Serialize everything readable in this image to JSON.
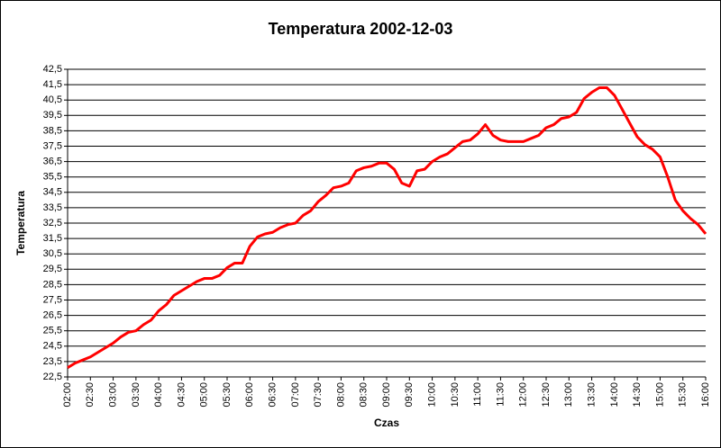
{
  "chart_data": {
    "type": "line",
    "title": "Temperatura 2002-12-03",
    "x_label": "Czas",
    "y_label": "Temperatura",
    "categories": [
      "02:00",
      null,
      null,
      "02:30",
      null,
      null,
      "03:00",
      null,
      null,
      "03:30",
      null,
      null,
      "04:00",
      null,
      null,
      "04:30",
      null,
      null,
      "05:00",
      null,
      null,
      "05:30",
      null,
      null,
      "06:00",
      null,
      null,
      "06:30",
      null,
      null,
      "07:00",
      null,
      null,
      "07:30",
      null,
      null,
      "08:00",
      null,
      null,
      "08:30",
      null,
      null,
      "09:00",
      null,
      null,
      "09:30",
      null,
      null,
      "10:00",
      null,
      null,
      "10:30",
      null,
      null,
      "11:00",
      null,
      null,
      "11:30",
      null,
      null,
      "12:00",
      null,
      null,
      "12:30",
      null,
      null,
      "13:00",
      null,
      null,
      "13:30",
      null,
      null,
      "14:00",
      null,
      null,
      "14:30",
      null,
      null,
      "15:00",
      null,
      null,
      "15:30",
      null,
      null,
      "16:00"
    ],
    "series": [
      {
        "name": "Temperatura",
        "color": "#ff0000",
        "values": [
          23.1,
          23.4,
          23.6,
          23.8,
          24.1,
          24.4,
          24.7,
          25.1,
          25.4,
          25.5,
          25.9,
          26.2,
          26.8,
          27.2,
          27.8,
          28.1,
          28.4,
          28.7,
          28.9,
          28.9,
          29.1,
          29.6,
          29.9,
          29.9,
          31.0,
          31.6,
          31.8,
          31.9,
          32.2,
          32.4,
          32.5,
          33.0,
          33.3,
          33.9,
          34.3,
          34.8,
          34.9,
          35.1,
          35.9,
          36.1,
          36.2,
          36.4,
          36.4,
          36.0,
          35.1,
          34.9,
          35.9,
          36.0,
          36.5,
          36.8,
          37.0,
          37.4,
          37.8,
          37.9,
          38.3,
          38.9,
          38.2,
          37.9,
          37.8,
          37.8,
          37.8,
          38.0,
          38.2,
          38.7,
          38.9,
          39.3,
          39.4,
          39.7,
          40.6,
          41.0,
          41.3,
          41.3,
          40.8,
          39.9,
          39.0,
          38.1,
          37.6,
          37.3,
          36.8,
          35.5,
          34.0,
          33.3,
          32.8,
          32.4,
          31.8
        ]
      }
    ],
    "ylim": [
      22.5,
      42.5
    ],
    "yticks": [
      {
        "value": 22.5,
        "label": "22,5"
      },
      {
        "value": 23.5,
        "label": "23,5"
      },
      {
        "value": 24.5,
        "label": "24,5"
      },
      {
        "value": 25.5,
        "label": "25,5"
      },
      {
        "value": 26.5,
        "label": "26,5"
      },
      {
        "value": 27.5,
        "label": "27,5"
      },
      {
        "value": 28.5,
        "label": "28,5"
      },
      {
        "value": 29.5,
        "label": "29,5"
      },
      {
        "value": 30.5,
        "label": "30,5"
      },
      {
        "value": 31.5,
        "label": "31,5"
      },
      {
        "value": 32.5,
        "label": "32,5"
      },
      {
        "value": 33.5,
        "label": "33,5"
      },
      {
        "value": 34.5,
        "label": "34,5"
      },
      {
        "value": 35.5,
        "label": "35,5"
      },
      {
        "value": 36.5,
        "label": "36,5"
      },
      {
        "value": 37.5,
        "label": "37,5"
      },
      {
        "value": 38.5,
        "label": "38,5"
      },
      {
        "value": 39.5,
        "label": "39,5"
      },
      {
        "value": 40.5,
        "label": "40,5"
      },
      {
        "value": 41.5,
        "label": "41,5"
      },
      {
        "value": 42.5,
        "label": "42,5"
      }
    ],
    "grid": true
  }
}
